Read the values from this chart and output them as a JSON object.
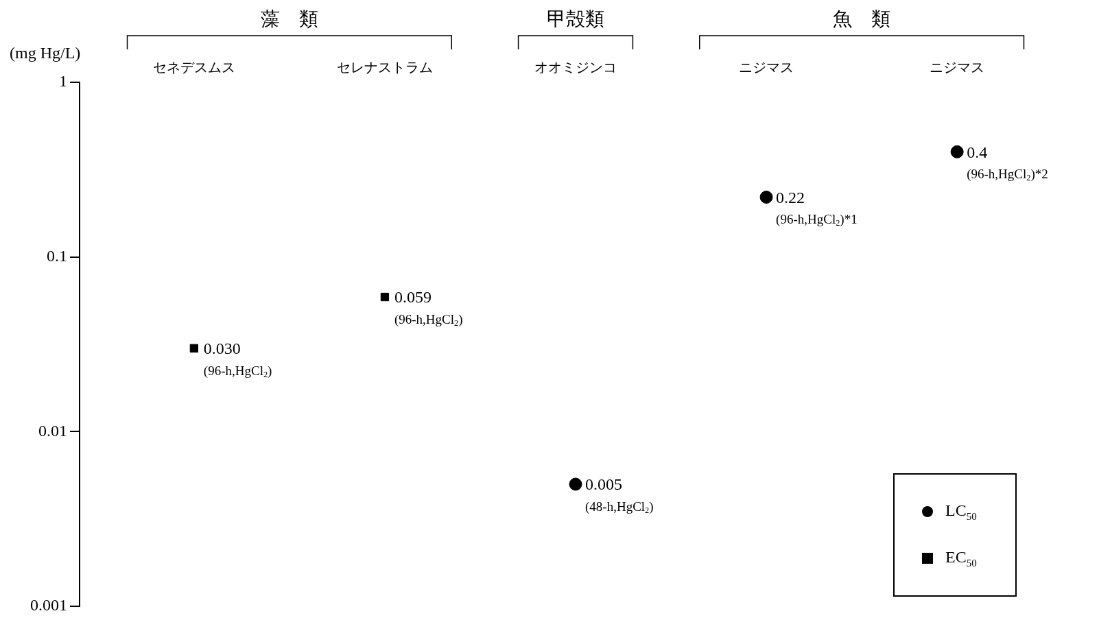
{
  "chart_data": {
    "type": "scatter",
    "ylabel": "(mg Hg/L)",
    "categories": [
      "セネデスムス",
      "セレナストラム",
      "オオミジンコ",
      "ニジマス",
      "ニジマス"
    ],
    "series": [
      {
        "name": "LC$_{50}$",
        "color": "#000000",
        "marker": "circle",
        "values": [
          null,
          null,
          0.005,
          0.22,
          0.4
        ],
        "value_labels": [
          null,
          null,
          "0.005",
          "0.22",
          "0.4"
        ]
      },
      {
        "name": "EC$_{50}$",
        "color": "#000000",
        "marker": "square",
        "values": [
          0.03,
          0.059,
          null,
          null,
          null
        ],
        "value_labels": [
          "0.030",
          "0.059",
          null,
          null,
          null
        ]
      }
    ],
    "log": "y",
    "ylim": [
      0.001,
      1
    ],
    "yticks": [
      0.001,
      0.01,
      0.1,
      1
    ],
    "grid": false,
    "legend": "bottom right",
    "annotations": [
      "藻　類",
      "甲殻類",
      "魚　類",
      {
        "text": "(96-h,HgCl$_{2}$)",
        "x": "セネデスムス",
        "y": 0.03
      },
      {
        "text": "(96-h,HgCl$_{2}$)",
        "x": "セレナストラム",
        "y": 0.059
      },
      {
        "text": "(48-h,HgCl$_{2}$)",
        "x": "オオミジンコ",
        "y": 0.005
      },
      {
        "text": "(96-h,HgCl$_{2}$)*1",
        "x": "ニジマス",
        "y": 0.22
      },
      "(96-h,HgCl$_{2}$)*2"
    ]
  }
}
